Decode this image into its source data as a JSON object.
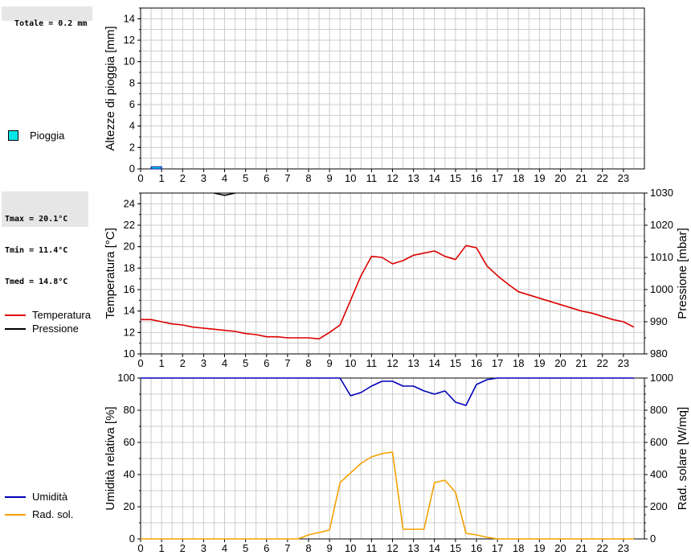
{
  "colors": {
    "rain": "#00e5e5",
    "temperature": "#dd0000",
    "pressure": "#000000",
    "humidity": "#0000bb",
    "solar": "#f5a000",
    "grid": "#cccccc",
    "summary_bg": "#e6e6e6"
  },
  "summary": {
    "rain_total": "Totale = 0.2 mm",
    "tmax": "Tmax = 20.1°C",
    "tmin": "Tmin = 11.4°C",
    "tmed": "Tmed = 14.8°C"
  },
  "legend": {
    "rain": "Pioggia",
    "temperature": "Temperatura",
    "pressure": "Pressione",
    "humidity": "Umidità",
    "solar": "Rad. sol."
  },
  "chart_data": [
    {
      "type": "bar",
      "title": "",
      "xlabel": "",
      "ylabel": "Altezze di pioggia [mm]",
      "xlim": [
        0,
        24
      ],
      "ylim": [
        0,
        15
      ],
      "x_ticks": [
        0,
        1,
        2,
        3,
        4,
        5,
        6,
        7,
        8,
        9,
        10,
        11,
        12,
        13,
        14,
        15,
        16,
        17,
        18,
        19,
        20,
        21,
        22,
        23
      ],
      "y_ticks": [
        0,
        2,
        4,
        6,
        8,
        10,
        12,
        14
      ],
      "series": [
        {
          "name": "Pioggia",
          "bars": [
            {
              "x_start": 0.5,
              "x_end": 1.0,
              "value": 0.2
            }
          ]
        }
      ]
    },
    {
      "type": "line",
      "title": "",
      "xlabel": "",
      "ylabel": "Temperatura [°C]",
      "y2label": "Pressione [mbar]",
      "xlim": [
        0,
        24
      ],
      "ylim": [
        10,
        25
      ],
      "y2lim": [
        980,
        1030
      ],
      "x_ticks": [
        0,
        1,
        2,
        3,
        4,
        5,
        6,
        7,
        8,
        9,
        10,
        11,
        12,
        13,
        14,
        15,
        16,
        17,
        18,
        19,
        20,
        21,
        22,
        23
      ],
      "y_ticks": [
        10,
        12,
        14,
        16,
        18,
        20,
        22,
        24
      ],
      "y2_ticks": [
        980,
        990,
        1000,
        1010,
        1020,
        1030
      ],
      "series": [
        {
          "name": "Temperatura",
          "axis": "left",
          "x": [
            0,
            0.5,
            1,
            1.5,
            2,
            2.5,
            3,
            3.5,
            4,
            4.5,
            5,
            5.5,
            6,
            6.5,
            7,
            7.5,
            8,
            8.5,
            9,
            9.5,
            10,
            10.5,
            11,
            11.5,
            12,
            12.5,
            13,
            13.5,
            14,
            14.5,
            15,
            15.5,
            16,
            16.5,
            17,
            17.5,
            18,
            18.5,
            19,
            19.5,
            20,
            20.5,
            21,
            21.5,
            22,
            22.5,
            23,
            23.5
          ],
          "values": [
            13.2,
            13.2,
            13.0,
            12.8,
            12.7,
            12.5,
            12.4,
            12.3,
            12.2,
            12.1,
            11.9,
            11.8,
            11.6,
            11.6,
            11.5,
            11.5,
            11.5,
            11.4,
            12.0,
            12.7,
            15.0,
            17.3,
            19.1,
            19.0,
            18.4,
            18.7,
            19.2,
            19.4,
            19.6,
            19.1,
            18.8,
            20.1,
            19.9,
            18.2,
            17.3,
            16.5,
            15.8,
            15.5,
            15.2,
            14.9,
            14.6,
            14.3,
            14.0,
            13.8,
            13.5,
            13.2,
            13.0,
            12.5
          ]
        },
        {
          "name": "Pressione",
          "axis": "right",
          "x": [
            3.5,
            4.0,
            4.5
          ],
          "values": [
            1030.0,
            1029.3,
            1030.0
          ]
        }
      ]
    },
    {
      "type": "line",
      "title": "",
      "xlabel": "",
      "ylabel": "Umidità relativa [%]",
      "y2label": "Rad. solare [W/mq]",
      "xlim": [
        0,
        24
      ],
      "ylim": [
        0,
        100
      ],
      "y2lim": [
        0,
        1000
      ],
      "x_ticks": [
        0,
        1,
        2,
        3,
        4,
        5,
        6,
        7,
        8,
        9,
        10,
        11,
        12,
        13,
        14,
        15,
        16,
        17,
        18,
        19,
        20,
        21,
        22,
        23
      ],
      "y_ticks": [
        0,
        20,
        40,
        60,
        80,
        100
      ],
      "y2_ticks": [
        0,
        200,
        400,
        600,
        800,
        1000
      ],
      "series": [
        {
          "name": "Umidità",
          "axis": "left",
          "x": [
            0,
            9.5,
            10,
            10.5,
            11,
            11.5,
            12,
            12.5,
            13,
            13.5,
            14,
            14.5,
            15,
            15.5,
            16,
            16.5,
            17,
            23.5
          ],
          "values": [
            100,
            100,
            89,
            91,
            95,
            98,
            98,
            95,
            95,
            92,
            90,
            92,
            85,
            83,
            96,
            99,
            100,
            100
          ]
        },
        {
          "name": "Rad. sol.",
          "axis": "right",
          "x": [
            0,
            7.5,
            8,
            8.5,
            9,
            9.5,
            10,
            10.5,
            11,
            11.5,
            12,
            12.5,
            13,
            13.5,
            14,
            14.5,
            15,
            15.5,
            16,
            16.5,
            17,
            23.5
          ],
          "values": [
            0,
            0,
            25,
            40,
            55,
            350,
            410,
            470,
            510,
            530,
            540,
            60,
            60,
            60,
            350,
            365,
            290,
            35,
            25,
            10,
            0,
            0
          ]
        }
      ]
    }
  ]
}
